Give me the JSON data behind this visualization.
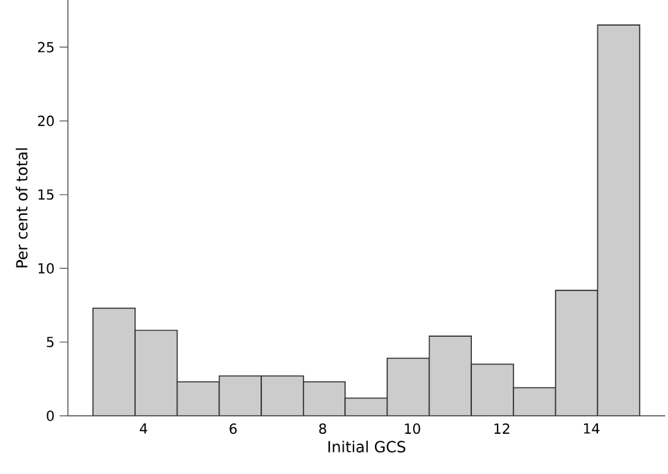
{
  "chart_data": {
    "type": "histogram",
    "xlabel": "Initial GCS",
    "ylabel": "Per cent of total",
    "bins": [
      2.87,
      3.81,
      4.75,
      5.69,
      6.63,
      7.57,
      8.5,
      9.44,
      10.38,
      11.32,
      12.26,
      13.2,
      14.14,
      15.08
    ],
    "values": [
      7.3,
      5.8,
      2.3,
      2.7,
      2.7,
      2.3,
      1.2,
      3.9,
      5.4,
      3.5,
      1.9,
      8.5,
      26.5
    ],
    "color": "#cccccc",
    "xlim": [
      2.31,
      15.65
    ],
    "ylim": [
      0,
      28.2
    ],
    "xticks": [
      4,
      6,
      8,
      10,
      12,
      14
    ],
    "yticks": [
      0,
      5,
      10,
      15,
      20,
      25
    ],
    "grid": false
  }
}
